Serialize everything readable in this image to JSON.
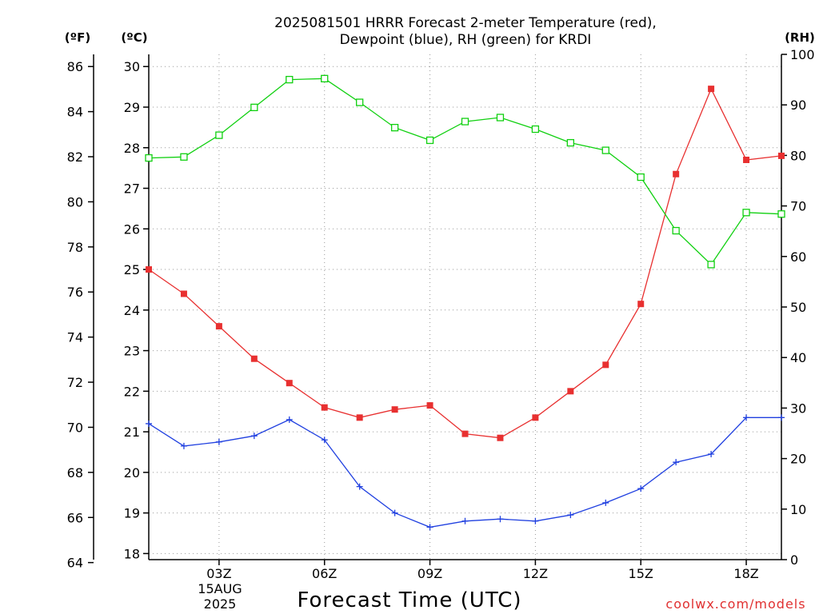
{
  "title_line1": "2025081501 HRRR Forecast 2-meter Temperature (red),",
  "title_line2": "Dewpoint (blue), RH (green) for KRDI",
  "unit_f": "(ºF)",
  "unit_c": "(ºC)",
  "unit_rh": "(RH)",
  "xlabel": "Forecast Time (UTC)",
  "credit": "coolwx.com/models",
  "date_line1": "15AUG",
  "date_line2": "2025",
  "colors": {
    "temperature": "#e83030",
    "dewpoint": "#2040e0",
    "rh": "#10d010"
  },
  "chart_data": {
    "type": "line",
    "title": "2025081501 HRRR Forecast 2-meter Temperature (red), Dewpoint (blue), RH (green) for KRDI",
    "xlabel": "Forecast Time (UTC)",
    "x": [
      1,
      2,
      3,
      4,
      5,
      6,
      7,
      8,
      9,
      10,
      11,
      12,
      13,
      14,
      15,
      16,
      17,
      18,
      19
    ],
    "x_ticks": [
      {
        "value": 3,
        "label": "03Z"
      },
      {
        "value": 6,
        "label": "06Z"
      },
      {
        "value": 9,
        "label": "09Z"
      },
      {
        "value": 12,
        "label": "12Z"
      },
      {
        "value": 15,
        "label": "15Z"
      },
      {
        "value": 18,
        "label": "18Z"
      }
    ],
    "xlim": [
      1,
      19
    ],
    "y_left_c": {
      "label": "(ºC)",
      "lim": [
        17.85,
        30.3
      ],
      "ticks": [
        18,
        19,
        20,
        21,
        22,
        23,
        24,
        25,
        26,
        27,
        28,
        29,
        30
      ]
    },
    "y_left_f": {
      "label": "(ºF)",
      "ticks": [
        64,
        66,
        68,
        70,
        72,
        74,
        76,
        78,
        80,
        82,
        84,
        86
      ]
    },
    "y_right": {
      "label": "(RH)",
      "lim": [
        0,
        100
      ],
      "ticks": [
        0,
        10,
        20,
        30,
        40,
        50,
        60,
        70,
        80,
        90,
        100
      ]
    },
    "grid": true,
    "series": [
      {
        "name": "Temperature",
        "axis": "c",
        "color": "#e83030",
        "marker": "filled-square",
        "values": [
          25.0,
          24.4,
          23.6,
          22.8,
          22.2,
          21.6,
          21.35,
          21.55,
          21.65,
          20.95,
          20.85,
          21.35,
          22.0,
          22.65,
          24.15,
          27.35,
          29.45,
          27.7,
          27.8
        ]
      },
      {
        "name": "Dewpoint",
        "axis": "c",
        "color": "#2040e0",
        "marker": "plus",
        "values": [
          21.2,
          20.65,
          20.75,
          20.9,
          21.3,
          20.8,
          19.65,
          19.0,
          18.65,
          18.8,
          18.85,
          18.8,
          18.95,
          19.25,
          19.6,
          20.25,
          20.45,
          21.35,
          21.35
        ]
      },
      {
        "name": "RH",
        "axis": "rh",
        "color": "#10d010",
        "marker": "open-square",
        "values": [
          79.5,
          79.7,
          84.0,
          89.5,
          95.0,
          95.2,
          90.5,
          85.5,
          83.0,
          86.7,
          87.5,
          85.2,
          82.5,
          81.0,
          75.7,
          65.1,
          58.4,
          68.7,
          68.4
        ]
      }
    ]
  }
}
